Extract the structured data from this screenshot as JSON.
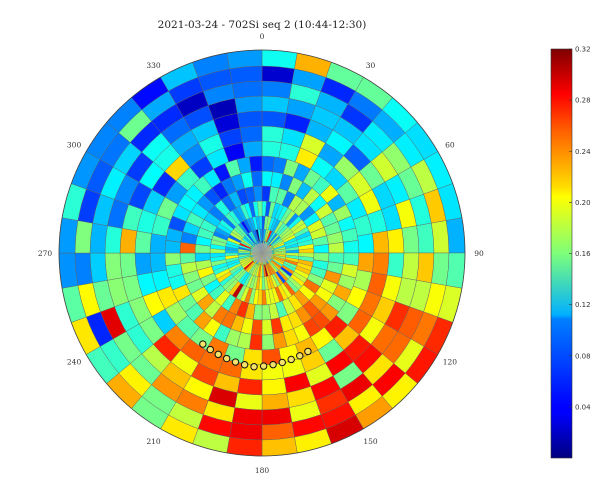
{
  "chart_data": {
    "type": "heatmap",
    "subtype": "polar",
    "title": "2021-03-24 - 702Si seq 2 (10:44-12:30)",
    "angle_ticks": [
      "0",
      "30",
      "60",
      "90",
      "120",
      "150",
      "180",
      "210",
      "240",
      "270",
      "300",
      "330"
    ],
    "angle_direction": "clockwise, 0 at top",
    "colormap": "jet",
    "vmin": 0,
    "vmax": 0.32,
    "colorbar_ticks": [
      "0.32",
      "0.28",
      "0.24",
      "0.20",
      "0.16",
      "0.12",
      "0.08",
      "0.04"
    ],
    "grid": true,
    "marker_track": {
      "description": "row of small circular markers with black edge and yellow fill",
      "count": 13
    }
  }
}
